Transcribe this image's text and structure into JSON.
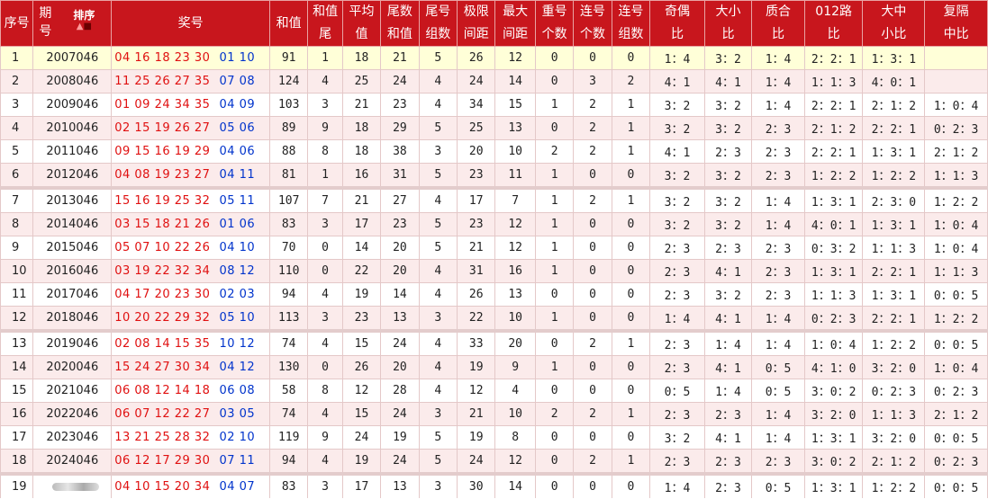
{
  "headers": {
    "idx": "序号",
    "issue_a": "期",
    "issue_b": "号",
    "sort": "排序",
    "nums": "奖号",
    "sum": "和值",
    "sumtail_a": "和值",
    "sumtail_b": "尾",
    "avg_a": "平均",
    "avg_b": "值",
    "tailsum_a": "尾数",
    "tailsum_b": "和值",
    "tailgroups_a": "尾号",
    "tailgroups_b": "组数",
    "range_a": "极限",
    "range_b": "间距",
    "maxgap_a": "最大",
    "maxgap_b": "间距",
    "repeat_a": "重号",
    "repeat_b": "个数",
    "consec_a": "连号",
    "consec_b": "个数",
    "consecg_a": "连号",
    "consecg_b": "组数",
    "oddeven_a": "奇偶",
    "oddeven_b": "比",
    "bigsmall_a": "大小",
    "bigsmall_b": "比",
    "prime_a": "质合",
    "prime_b": "比",
    "route_a": "012路",
    "route_b": "比",
    "bms_a": "大中",
    "bms_b": "小比",
    "rep_a": "复隔",
    "rep_b": "中比"
  },
  "rows": [
    {
      "idx": "1",
      "issue": "2007046",
      "red": "04 16 18 23 30",
      "blue": "01 10",
      "sum": "91",
      "sumtail": "1",
      "avg": "18",
      "tailsum": "21",
      "tailgroups": "5",
      "range": "26",
      "maxgap": "12",
      "repeat": "0",
      "consec": "0",
      "consecg": "0",
      "oddeven": "1：4",
      "bigsmall": "3：2",
      "prime": "1：4",
      "route": "2：2：1",
      "bms": "1：3：1",
      "rep": ""
    },
    {
      "idx": "2",
      "issue": "2008046",
      "red": "11 25 26 27 35",
      "blue": "07 08",
      "sum": "124",
      "sumtail": "4",
      "avg": "25",
      "tailsum": "24",
      "tailgroups": "4",
      "range": "24",
      "maxgap": "14",
      "repeat": "0",
      "consec": "3",
      "consecg": "2",
      "oddeven": "4：1",
      "bigsmall": "4：1",
      "prime": "1：4",
      "route": "1：1：3",
      "bms": "4：0：1",
      "rep": ""
    },
    {
      "idx": "3",
      "issue": "2009046",
      "red": "01 09 24 34 35",
      "blue": "04 09",
      "sum": "103",
      "sumtail": "3",
      "avg": "21",
      "tailsum": "23",
      "tailgroups": "4",
      "range": "34",
      "maxgap": "15",
      "repeat": "1",
      "consec": "2",
      "consecg": "1",
      "oddeven": "3：2",
      "bigsmall": "3：2",
      "prime": "1：4",
      "route": "2：2：1",
      "bms": "2：1：2",
      "rep": "1：0：4"
    },
    {
      "idx": "4",
      "issue": "2010046",
      "red": "02 15 19 26 27",
      "blue": "05 06",
      "sum": "89",
      "sumtail": "9",
      "avg": "18",
      "tailsum": "29",
      "tailgroups": "5",
      "range": "25",
      "maxgap": "13",
      "repeat": "0",
      "consec": "2",
      "consecg": "1",
      "oddeven": "3：2",
      "bigsmall": "3：2",
      "prime": "2：3",
      "route": "2：1：2",
      "bms": "2：2：1",
      "rep": "0：2：3"
    },
    {
      "idx": "5",
      "issue": "2011046",
      "red": "09 15 16 19 29",
      "blue": "04 06",
      "sum": "88",
      "sumtail": "8",
      "avg": "18",
      "tailsum": "38",
      "tailgroups": "3",
      "range": "20",
      "maxgap": "10",
      "repeat": "2",
      "consec": "2",
      "consecg": "1",
      "oddeven": "4：1",
      "bigsmall": "2：3",
      "prime": "2：3",
      "route": "2：2：1",
      "bms": "1：3：1",
      "rep": "2：1：2"
    },
    {
      "idx": "6",
      "issue": "2012046",
      "red": "04 08 19 23 27",
      "blue": "04 11",
      "sum": "81",
      "sumtail": "1",
      "avg": "16",
      "tailsum": "31",
      "tailgroups": "5",
      "range": "23",
      "maxgap": "11",
      "repeat": "1",
      "consec": "0",
      "consecg": "0",
      "oddeven": "3：2",
      "bigsmall": "3：2",
      "prime": "2：3",
      "route": "1：2：2",
      "bms": "1：2：2",
      "rep": "1：1：3"
    },
    {
      "idx": "7",
      "issue": "2013046",
      "red": "15 16 19 25 32",
      "blue": "05 11",
      "sum": "107",
      "sumtail": "7",
      "avg": "21",
      "tailsum": "27",
      "tailgroups": "4",
      "range": "17",
      "maxgap": "7",
      "repeat": "1",
      "consec": "2",
      "consecg": "1",
      "oddeven": "3：2",
      "bigsmall": "3：2",
      "prime": "1：4",
      "route": "1：3：1",
      "bms": "2：3：0",
      "rep": "1：2：2"
    },
    {
      "idx": "8",
      "issue": "2014046",
      "red": "03 15 18 21 26",
      "blue": "01 06",
      "sum": "83",
      "sumtail": "3",
      "avg": "17",
      "tailsum": "23",
      "tailgroups": "5",
      "range": "23",
      "maxgap": "12",
      "repeat": "1",
      "consec": "0",
      "consecg": "0",
      "oddeven": "3：2",
      "bigsmall": "3：2",
      "prime": "1：4",
      "route": "4：0：1",
      "bms": "1：3：1",
      "rep": "1：0：4"
    },
    {
      "idx": "9",
      "issue": "2015046",
      "red": "05 07 10 22 26",
      "blue": "04 10",
      "sum": "70",
      "sumtail": "0",
      "avg": "14",
      "tailsum": "20",
      "tailgroups": "5",
      "range": "21",
      "maxgap": "12",
      "repeat": "1",
      "consec": "0",
      "consecg": "0",
      "oddeven": "2：3",
      "bigsmall": "2：3",
      "prime": "2：3",
      "route": "0：3：2",
      "bms": "1：1：3",
      "rep": "1：0：4"
    },
    {
      "idx": "10",
      "issue": "2016046",
      "red": "03 19 22 32 34",
      "blue": "08 12",
      "sum": "110",
      "sumtail": "0",
      "avg": "22",
      "tailsum": "20",
      "tailgroups": "4",
      "range": "31",
      "maxgap": "16",
      "repeat": "1",
      "consec": "0",
      "consecg": "0",
      "oddeven": "2：3",
      "bigsmall": "4：1",
      "prime": "2：3",
      "route": "1：3：1",
      "bms": "2：2：1",
      "rep": "1：1：3"
    },
    {
      "idx": "11",
      "issue": "2017046",
      "red": "04 17 20 23 30",
      "blue": "02 03",
      "sum": "94",
      "sumtail": "4",
      "avg": "19",
      "tailsum": "14",
      "tailgroups": "4",
      "range": "26",
      "maxgap": "13",
      "repeat": "0",
      "consec": "0",
      "consecg": "0",
      "oddeven": "2：3",
      "bigsmall": "3：2",
      "prime": "2：3",
      "route": "1：1：3",
      "bms": "1：3：1",
      "rep": "0：0：5"
    },
    {
      "idx": "12",
      "issue": "2018046",
      "red": "10 20 22 29 32",
      "blue": "05 10",
      "sum": "113",
      "sumtail": "3",
      "avg": "23",
      "tailsum": "13",
      "tailgroups": "3",
      "range": "22",
      "maxgap": "10",
      "repeat": "1",
      "consec": "0",
      "consecg": "0",
      "oddeven": "1：4",
      "bigsmall": "4：1",
      "prime": "1：4",
      "route": "0：2：3",
      "bms": "2：2：1",
      "rep": "1：2：2"
    },
    {
      "idx": "13",
      "issue": "2019046",
      "red": "02 08 14 15 35",
      "blue": "10 12",
      "sum": "74",
      "sumtail": "4",
      "avg": "15",
      "tailsum": "24",
      "tailgroups": "4",
      "range": "33",
      "maxgap": "20",
      "repeat": "0",
      "consec": "2",
      "consecg": "1",
      "oddeven": "2：3",
      "bigsmall": "1：4",
      "prime": "1：4",
      "route": "1：0：4",
      "bms": "1：2：2",
      "rep": "0：0：5"
    },
    {
      "idx": "14",
      "issue": "2020046",
      "red": "15 24 27 30 34",
      "blue": "04 12",
      "sum": "130",
      "sumtail": "0",
      "avg": "26",
      "tailsum": "20",
      "tailgroups": "4",
      "range": "19",
      "maxgap": "9",
      "repeat": "1",
      "consec": "0",
      "consecg": "0",
      "oddeven": "2：3",
      "bigsmall": "4：1",
      "prime": "0：5",
      "route": "4：1：0",
      "bms": "3：2：0",
      "rep": "1：0：4"
    },
    {
      "idx": "15",
      "issue": "2021046",
      "red": "06 08 12 14 18",
      "blue": "06 08",
      "sum": "58",
      "sumtail": "8",
      "avg": "12",
      "tailsum": "28",
      "tailgroups": "4",
      "range": "12",
      "maxgap": "4",
      "repeat": "0",
      "consec": "0",
      "consecg": "0",
      "oddeven": "0：5",
      "bigsmall": "1：4",
      "prime": "0：5",
      "route": "3：0：2",
      "bms": "0：2：3",
      "rep": "0：2：3"
    },
    {
      "idx": "16",
      "issue": "2022046",
      "red": "06 07 12 22 27",
      "blue": "03 05",
      "sum": "74",
      "sumtail": "4",
      "avg": "15",
      "tailsum": "24",
      "tailgroups": "3",
      "range": "21",
      "maxgap": "10",
      "repeat": "2",
      "consec": "2",
      "consecg": "1",
      "oddeven": "2：3",
      "bigsmall": "2：3",
      "prime": "1：4",
      "route": "3：2：0",
      "bms": "1：1：3",
      "rep": "2：1：2"
    },
    {
      "idx": "17",
      "issue": "2023046",
      "red": "13 21 25 28 32",
      "blue": "02 10",
      "sum": "119",
      "sumtail": "9",
      "avg": "24",
      "tailsum": "19",
      "tailgroups": "5",
      "range": "19",
      "maxgap": "8",
      "repeat": "0",
      "consec": "0",
      "consecg": "0",
      "oddeven": "3：2",
      "bigsmall": "4：1",
      "prime": "1：4",
      "route": "1：3：1",
      "bms": "3：2：0",
      "rep": "0：0：5"
    },
    {
      "idx": "18",
      "issue": "2024046",
      "red": "06 12 17 29 30",
      "blue": "07 11",
      "sum": "94",
      "sumtail": "4",
      "avg": "19",
      "tailsum": "24",
      "tailgroups": "5",
      "range": "24",
      "maxgap": "12",
      "repeat": "0",
      "consec": "2",
      "consecg": "1",
      "oddeven": "2：3",
      "bigsmall": "2：3",
      "prime": "2：3",
      "route": "3：0：2",
      "bms": "2：1：2",
      "rep": "0：2：3"
    },
    {
      "idx": "19",
      "issue": "",
      "red": "04 10 15 20 34",
      "blue": "04 07",
      "sum": "83",
      "sumtail": "3",
      "avg": "17",
      "tailsum": "13",
      "tailgroups": "3",
      "range": "30",
      "maxgap": "14",
      "repeat": "0",
      "consec": "0",
      "consecg": "0",
      "oddeven": "1：4",
      "bigsmall": "2：3",
      "prime": "0：5",
      "route": "1：3：1",
      "bms": "1：2：2",
      "rep": "0：0：5"
    }
  ]
}
